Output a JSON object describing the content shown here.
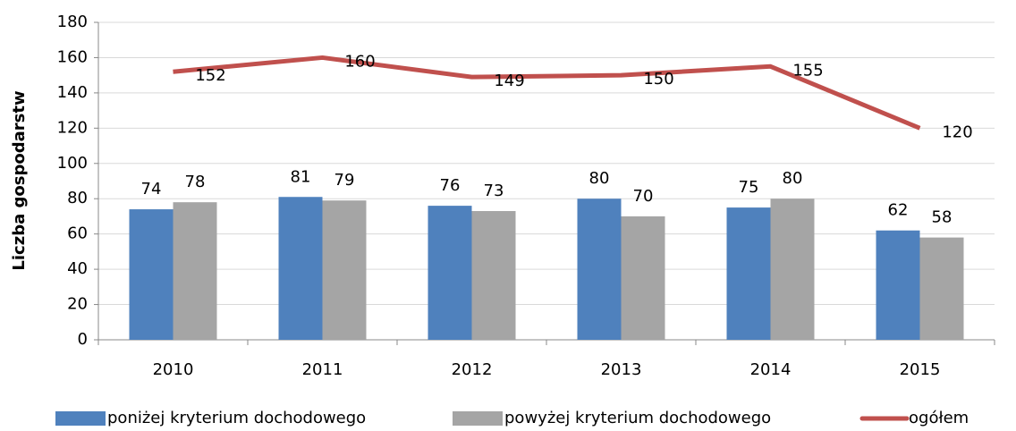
{
  "chart_data": {
    "type": "bar",
    "y_label": "Liczba gospodarstw",
    "categories": [
      "2010",
      "2011",
      "2012",
      "2013",
      "2014",
      "2015"
    ],
    "series": [
      {
        "name": "poniżej kryterium dochodowego",
        "color": "#4f81bd",
        "values": [
          74,
          81,
          76,
          80,
          75,
          62
        ]
      },
      {
        "name": "powyżej kryterium dochodowego",
        "color": "#a5a5a5",
        "values": [
          78,
          79,
          73,
          70,
          80,
          58
        ]
      },
      {
        "name": "ogółem",
        "color": "#c0504d",
        "type": "line",
        "values": [
          152,
          160,
          149,
          150,
          155,
          120
        ]
      }
    ],
    "ylim": [
      0,
      180
    ],
    "yticks": [
      0,
      20,
      40,
      60,
      80,
      100,
      120,
      140,
      160,
      180
    ],
    "grid": true,
    "legend": "bottom"
  }
}
